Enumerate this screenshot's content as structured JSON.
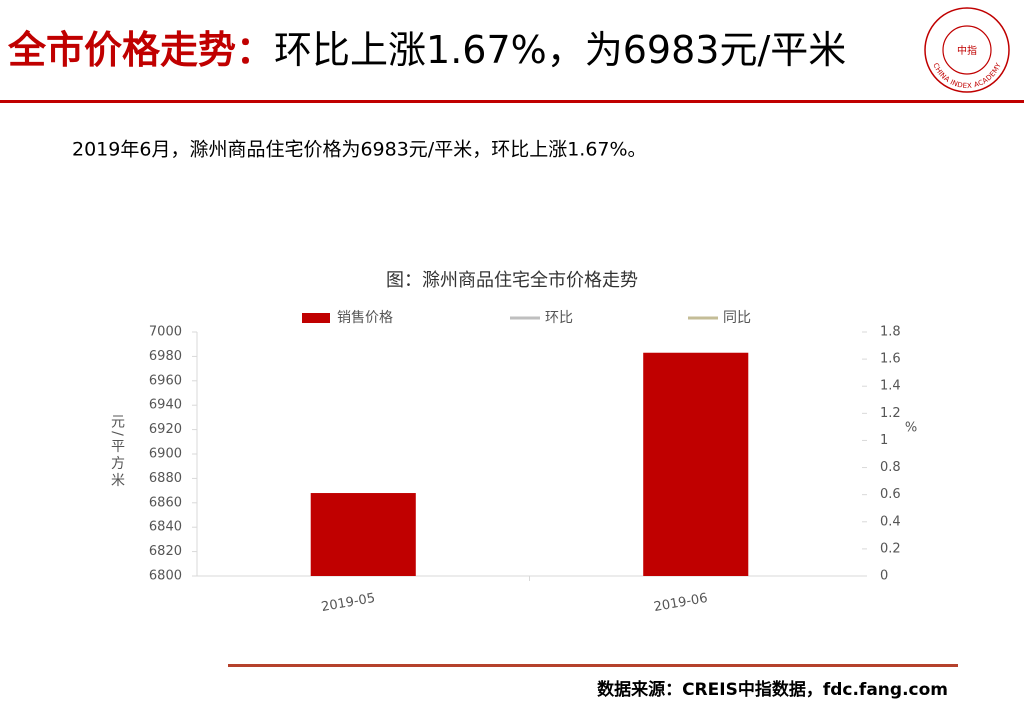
{
  "header": {
    "title_lead": "全市价格走势：",
    "title_rest": "环比上涨1.67%，为6983元/平米",
    "logo_text": "CHINA INDEX ACADEMY",
    "logo_center": "中指"
  },
  "summary": "2019年6月，滁州商品住宅价格为6983元/平米，环比上涨1.67%。",
  "chart_data": {
    "type": "bar",
    "title": "图：滁州商品住宅全市价格走势",
    "categories": [
      "2019-05",
      "2019-06"
    ],
    "series": [
      {
        "name": "销售价格",
        "color": "#c00000",
        "type": "bar",
        "values": [
          6868,
          6983
        ]
      },
      {
        "name": "环比",
        "color": "#bfbfbf",
        "type": "line",
        "axis": "y2",
        "values": [
          null,
          null
        ]
      },
      {
        "name": "同比",
        "color": "#c4bd97",
        "type": "line",
        "axis": "y2",
        "values": [
          null,
          null
        ]
      }
    ],
    "ylabel": "元/平方米",
    "y2label": "%",
    "ylim": [
      6800,
      7000
    ],
    "yticks": [
      6800,
      6820,
      6840,
      6860,
      6880,
      6900,
      6920,
      6940,
      6960,
      6980,
      7000
    ],
    "y2lim": [
      0,
      1.8
    ],
    "y2ticks": [
      0,
      0.2,
      0.4,
      0.6,
      0.8,
      1,
      1.2,
      1.4,
      1.6,
      1.8
    ],
    "legend": "top",
    "grid": false
  },
  "source": "数据来源：CREIS中指数据，fdc.fang.com"
}
